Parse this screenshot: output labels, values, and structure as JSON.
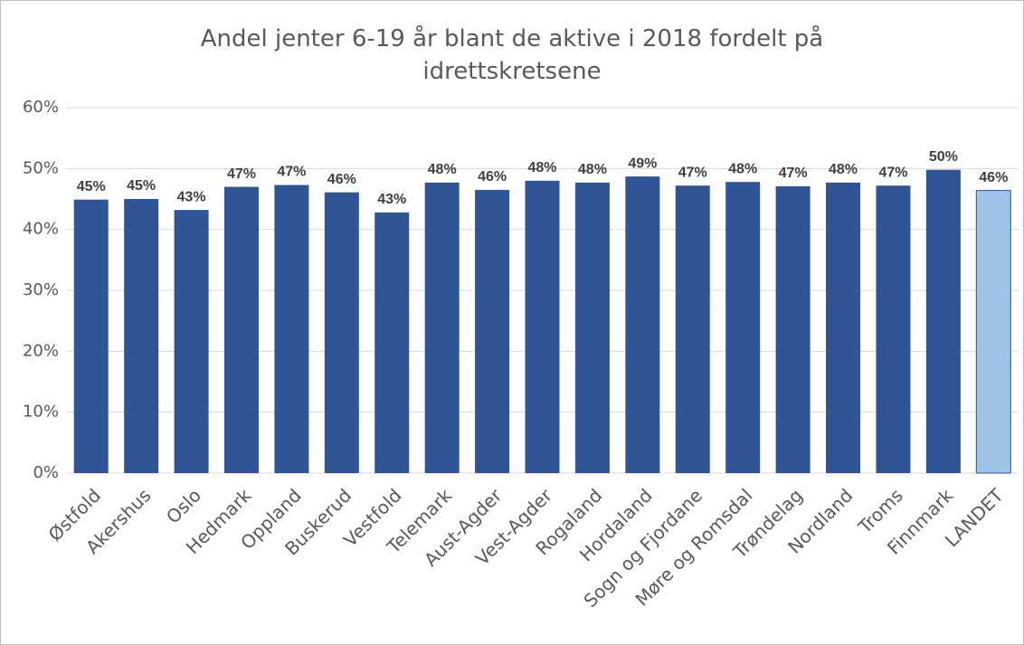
{
  "chart_data": {
    "type": "bar",
    "title": "Andel jenter 6-19 år blant de aktive i 2018 fordelt på idrettskretsene",
    "categories": [
      "Østfold",
      "Akershus",
      "Oslo",
      "Hedmark",
      "Oppland",
      "Buskerud",
      "Vestfold",
      "Telemark",
      "Aust-Agder",
      "Vest-Agder",
      "Rogaland",
      "Hordaland",
      "Sogn og Fjordane",
      "Møre og Romsdal",
      "Trøndelag",
      "Nordland",
      "Troms",
      "Finnmark",
      "LANDET"
    ],
    "values": [
      44.9,
      45.0,
      43.2,
      47.0,
      47.3,
      46.1,
      42.8,
      47.7,
      46.5,
      48.0,
      47.7,
      48.7,
      47.2,
      47.8,
      47.1,
      47.7,
      47.2,
      49.8,
      46.4
    ],
    "value_labels": [
      "45%",
      "45%",
      "43%",
      "47%",
      "47%",
      "46%",
      "43%",
      "48%",
      "46%",
      "48%",
      "48%",
      "49%",
      "47%",
      "48%",
      "47%",
      "48%",
      "47%",
      "50%",
      "46%"
    ],
    "colors": [
      "#2f5597",
      "#2f5597",
      "#2f5597",
      "#2f5597",
      "#2f5597",
      "#2f5597",
      "#2f5597",
      "#2f5597",
      "#2f5597",
      "#2f5597",
      "#2f5597",
      "#2f5597",
      "#2f5597",
      "#2f5597",
      "#2f5597",
      "#2f5597",
      "#2f5597",
      "#2f5597",
      "#9dc3e6"
    ],
    "ylim": [
      0,
      60
    ],
    "yticks": [
      {
        "value": 0,
        "label": "0%"
      },
      {
        "value": 10,
        "label": "10%"
      },
      {
        "value": 20,
        "label": "20%"
      },
      {
        "value": 30,
        "label": "30%"
      },
      {
        "value": 40,
        "label": "40%"
      },
      {
        "value": 50,
        "label": "50%"
      },
      {
        "value": 60,
        "label": "60%"
      }
    ],
    "grid": true
  }
}
